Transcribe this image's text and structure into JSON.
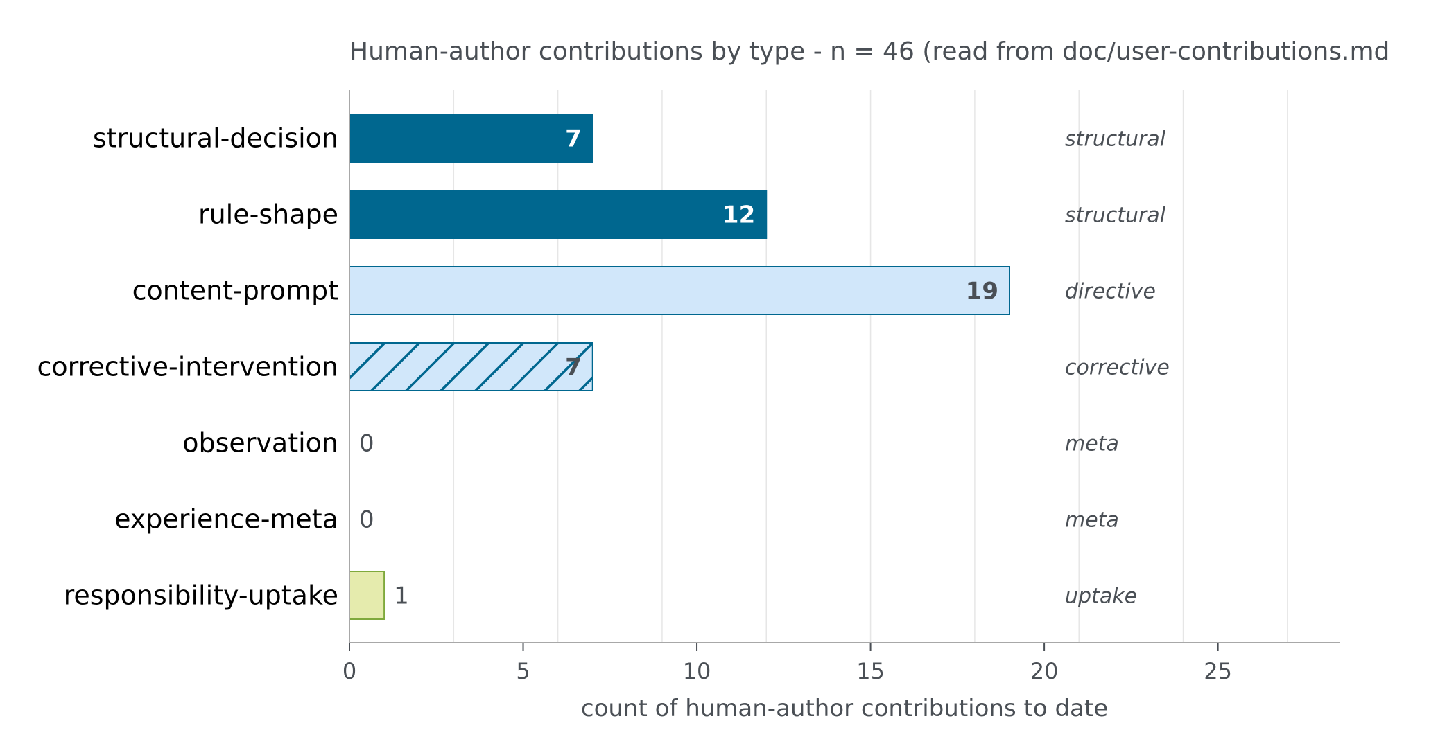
{
  "chart_data": {
    "type": "bar",
    "orientation": "horizontal",
    "title": "Human-author contributions by type  -  n = 46  (read from doc/user-contributions.md",
    "xlabel": "count of human-author contributions to date",
    "ylabel": "",
    "xlim": [
      0,
      28.5
    ],
    "xticks": [
      0,
      5,
      10,
      15,
      20,
      25
    ],
    "grid": "vertical gridlines at every 3",
    "legend": "none",
    "categories": [
      "structural-decision",
      "rule-shape",
      "content-prompt",
      "corrective-intervention",
      "observation",
      "experience-meta",
      "responsibility-uptake"
    ],
    "values": [
      7,
      12,
      19,
      7,
      0,
      0,
      1
    ],
    "value_labels": [
      "7",
      "12",
      "19",
      "7",
      "0",
      "0",
      "1"
    ],
    "classes": [
      "structural",
      "structural",
      "directive",
      "corrective",
      "meta",
      "meta",
      "uptake"
    ],
    "class_styles": {
      "structural": {
        "fill": "#00678f",
        "stroke": "#00678f",
        "label_color": "#ffffff"
      },
      "directive": {
        "fill": "#d1e7fa",
        "stroke": "#00678f",
        "label_color": "#4a4f55"
      },
      "corrective": {
        "fill": "#d1e7fa",
        "stroke": "#00678f",
        "hatch": true,
        "label_color": "#4a4f55"
      },
      "meta": {
        "fill": "#d1e7fa",
        "stroke": "#00678f",
        "label_color": "#4a4f55"
      },
      "uptake": {
        "fill": "#e5ebad",
        "stroke": "#7fa93c",
        "label_color": "#4a4f55"
      }
    }
  }
}
